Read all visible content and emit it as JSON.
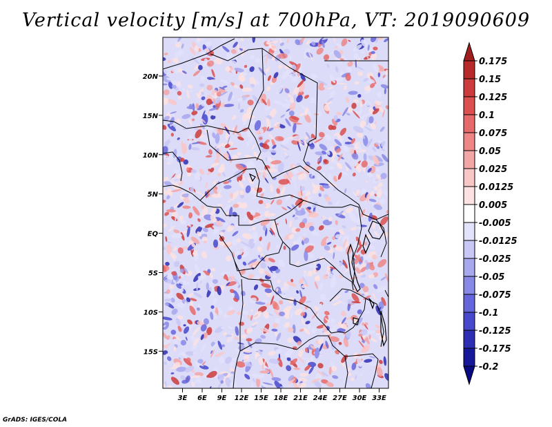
{
  "title": "Vertical velocity [m/s] at 700hPa, VT: 2019090609",
  "credit": "GrADS: IGES/COLA",
  "lat_labels": [
    "20N",
    "15N",
    "10N",
    "5N",
    "EQ",
    "5S",
    "10S",
    "15S"
  ],
  "lon_labels": [
    "3E",
    "6E",
    "9E",
    "12E",
    "15E",
    "18E",
    "21E",
    "24E",
    "27E",
    "30E",
    "33E"
  ],
  "colorbar": {
    "labels": [
      "0.175",
      "0.15",
      "0.125",
      "0.1",
      "0.075",
      "0.05",
      "0.025",
      "0.0125",
      "0.005",
      "-0.005",
      "-0.0125",
      "-0.025",
      "-0.05",
      "-0.075",
      "-0.1",
      "-0.125",
      "-0.175",
      "-0.2"
    ],
    "colors": [
      "#a01e1e",
      "#b82a2a",
      "#cc3c3c",
      "#dc5050",
      "#e66a6a",
      "#ee8686",
      "#f4a6a6",
      "#f9c6c6",
      "#fde2e2",
      "#ffffff",
      "#e2e2fb",
      "#c8c8f6",
      "#a8a8ee",
      "#8888e6",
      "#6666dc",
      "#4848cc",
      "#2e2eb4",
      "#18189a",
      "#0a0a82"
    ]
  }
}
